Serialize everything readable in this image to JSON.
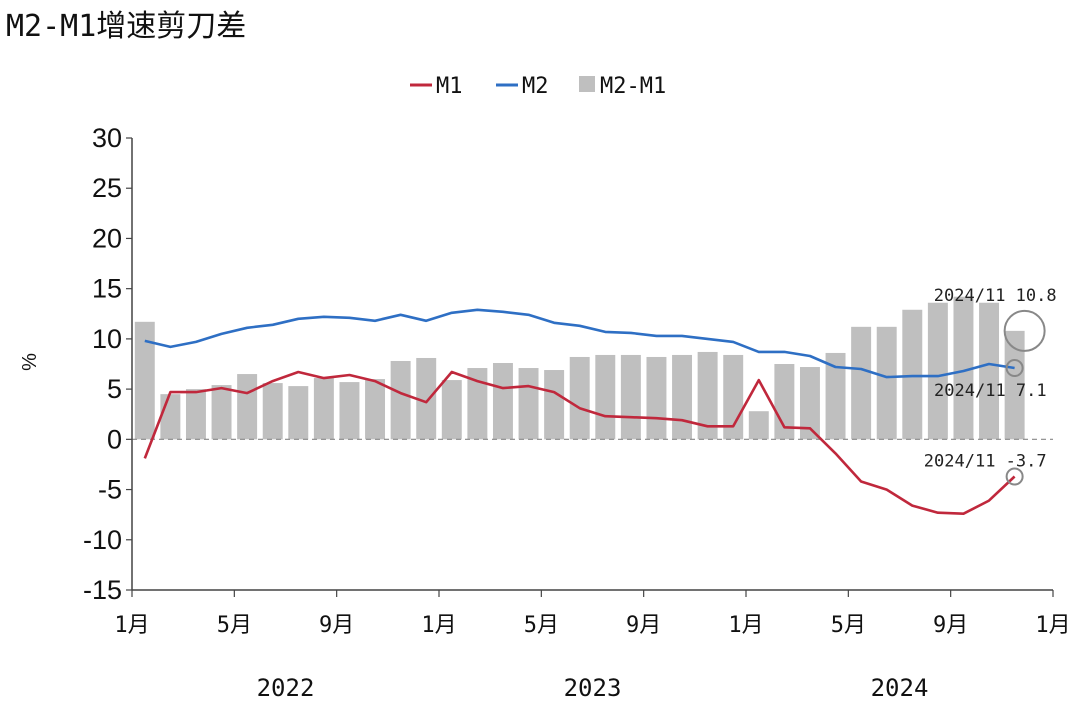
{
  "chart_data": {
    "type": "bar+line",
    "title": "M2-M1增速剪刀差",
    "ylabel": "%",
    "ylim": [
      -15,
      30
    ],
    "yticks": [
      30,
      25,
      20,
      15,
      10,
      5,
      0,
      -5,
      -10,
      -15
    ],
    "x": [
      "2022-01",
      "2022-02",
      "2022-03",
      "2022-04",
      "2022-05",
      "2022-06",
      "2022-07",
      "2022-08",
      "2022-09",
      "2022-10",
      "2022-11",
      "2022-12",
      "2023-01",
      "2023-02",
      "2023-03",
      "2023-04",
      "2023-05",
      "2023-06",
      "2023-07",
      "2023-08",
      "2023-09",
      "2023-10",
      "2023-11",
      "2023-12",
      "2024-01",
      "2024-02",
      "2024-03",
      "2024-04",
      "2024-05",
      "2024-06",
      "2024-07",
      "2024-08",
      "2024-09",
      "2024-10",
      "2024-11"
    ],
    "xtick_labels": [
      "1月",
      "5月",
      "9月",
      "1月",
      "5月",
      "9月",
      "1月",
      "5月",
      "9月",
      "1月"
    ],
    "year_labels": [
      "2022",
      "2023",
      "2024"
    ],
    "legend": [
      "M1",
      "M2",
      "M2-M1"
    ],
    "legend_placement": "top-center",
    "grid": false,
    "series": [
      {
        "name": "M1",
        "type": "line",
        "color": "#c0283c",
        "values": [
          -1.9,
          4.7,
          4.7,
          5.1,
          4.6,
          5.8,
          6.7,
          6.1,
          6.4,
          5.8,
          4.6,
          3.7,
          6.7,
          5.8,
          5.1,
          5.3,
          4.7,
          3.1,
          2.3,
          2.2,
          2.1,
          1.9,
          1.3,
          1.3,
          5.9,
          1.2,
          1.1,
          -1.4,
          -4.2,
          -5.0,
          -6.6,
          -7.3,
          -7.4,
          -6.1,
          -3.7
        ]
      },
      {
        "name": "M2",
        "type": "line",
        "color": "#2e6fc4",
        "values": [
          9.8,
          9.2,
          9.7,
          10.5,
          11.1,
          11.4,
          12.0,
          12.2,
          12.1,
          11.8,
          12.4,
          11.8,
          12.6,
          12.9,
          12.7,
          12.4,
          11.6,
          11.3,
          10.7,
          10.6,
          10.3,
          10.3,
          10.0,
          9.7,
          8.7,
          8.7,
          8.3,
          7.2,
          7.0,
          6.2,
          6.3,
          6.3,
          6.8,
          7.5,
          7.1
        ]
      },
      {
        "name": "M2-M1",
        "type": "bar",
        "color": "#bfbfbf",
        "values": [
          11.7,
          4.5,
          5.0,
          5.4,
          6.5,
          5.6,
          5.3,
          6.1,
          5.7,
          6.0,
          7.8,
          8.1,
          5.9,
          7.1,
          7.6,
          7.1,
          6.9,
          8.2,
          8.4,
          8.4,
          8.2,
          8.4,
          8.7,
          8.4,
          2.8,
          7.5,
          7.2,
          8.6,
          11.2,
          11.2,
          12.9,
          13.6,
          14.2,
          13.6,
          10.8
        ]
      }
    ],
    "annotations": [
      {
        "label": "2024/11",
        "value_text": "10.8",
        "series": "M2-M1"
      },
      {
        "label": "2024/11",
        "value_text": "7.1",
        "series": "M2"
      },
      {
        "label": "2024/11",
        "value_text": "-3.7",
        "series": "M1"
      }
    ]
  }
}
